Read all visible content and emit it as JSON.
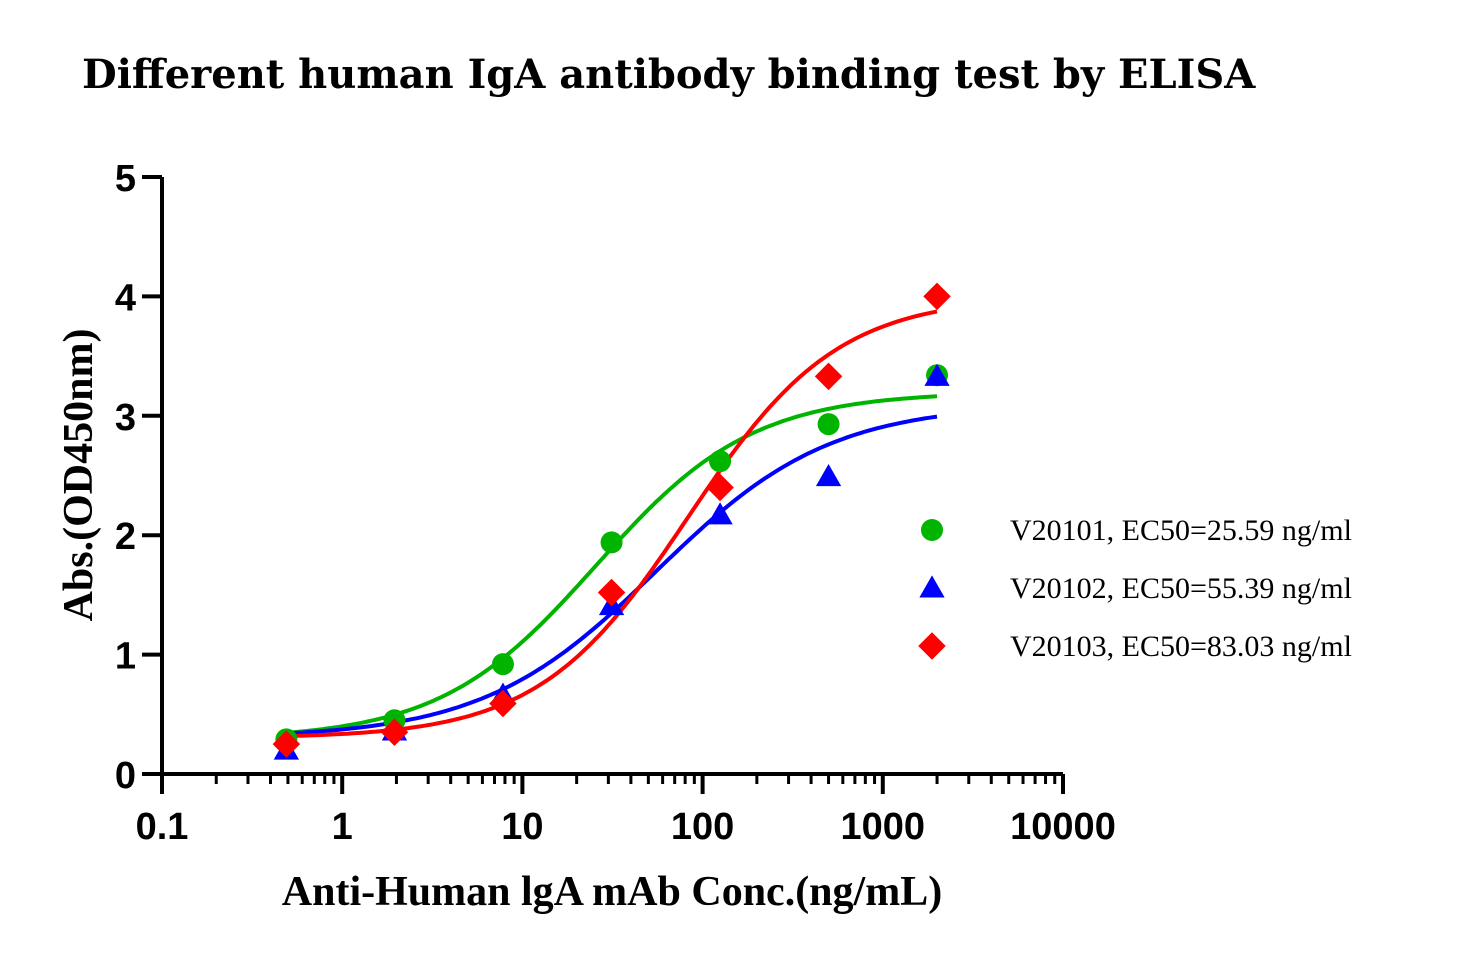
{
  "chart_data": {
    "type": "scatter",
    "title": "Different  human IgA antibody binding test by ELISA",
    "xlabel": "Anti-Human lgA mAb Conc.(ng/mL)",
    "ylabel": "Abs.(OD450nm)",
    "xscale": "log",
    "xlim": [
      0.1,
      10000
    ],
    "ylim": [
      0,
      5
    ],
    "xticks": [
      0.1,
      1,
      10,
      100,
      1000,
      10000
    ],
    "xtick_labels": [
      "0.1",
      "1",
      "10",
      "100",
      "1000",
      "10000"
    ],
    "yticks": [
      0,
      1,
      2,
      3,
      4,
      5
    ],
    "ytick_labels": [
      "0",
      "1",
      "2",
      "3",
      "4",
      "5"
    ],
    "x": [
      0.49,
      1.95,
      7.8,
      31.25,
      125,
      500,
      2000
    ],
    "legend_position": "right",
    "series": [
      {
        "name": "V20101, EC50=25.59 ng/ml",
        "marker": "circle",
        "color": "#00b400",
        "values": [
          0.29,
          0.45,
          0.92,
          1.94,
          2.62,
          2.93,
          3.34
        ],
        "fit": {
          "bottom": 0.29,
          "top": 3.2,
          "ec50": 25.59,
          "hill": 1.0
        }
      },
      {
        "name": "V20102, EC50=55.39 ng/ml",
        "marker": "triangle",
        "color": "#0000ff",
        "values": [
          0.2,
          0.36,
          0.66,
          1.41,
          2.17,
          2.49,
          3.33
        ],
        "fit": {
          "bottom": 0.3,
          "top": 3.1,
          "ec50": 55.39,
          "hill": 0.9
        }
      },
      {
        "name": "V20103, EC50=83.03 ng/ml",
        "marker": "diamond",
        "color": "#ff0000",
        "values": [
          0.25,
          0.35,
          0.59,
          1.52,
          2.4,
          3.33,
          4.0
        ],
        "fit": {
          "bottom": 0.3,
          "top": 4.0,
          "ec50": 83.03,
          "hill": 1.05
        }
      }
    ]
  }
}
